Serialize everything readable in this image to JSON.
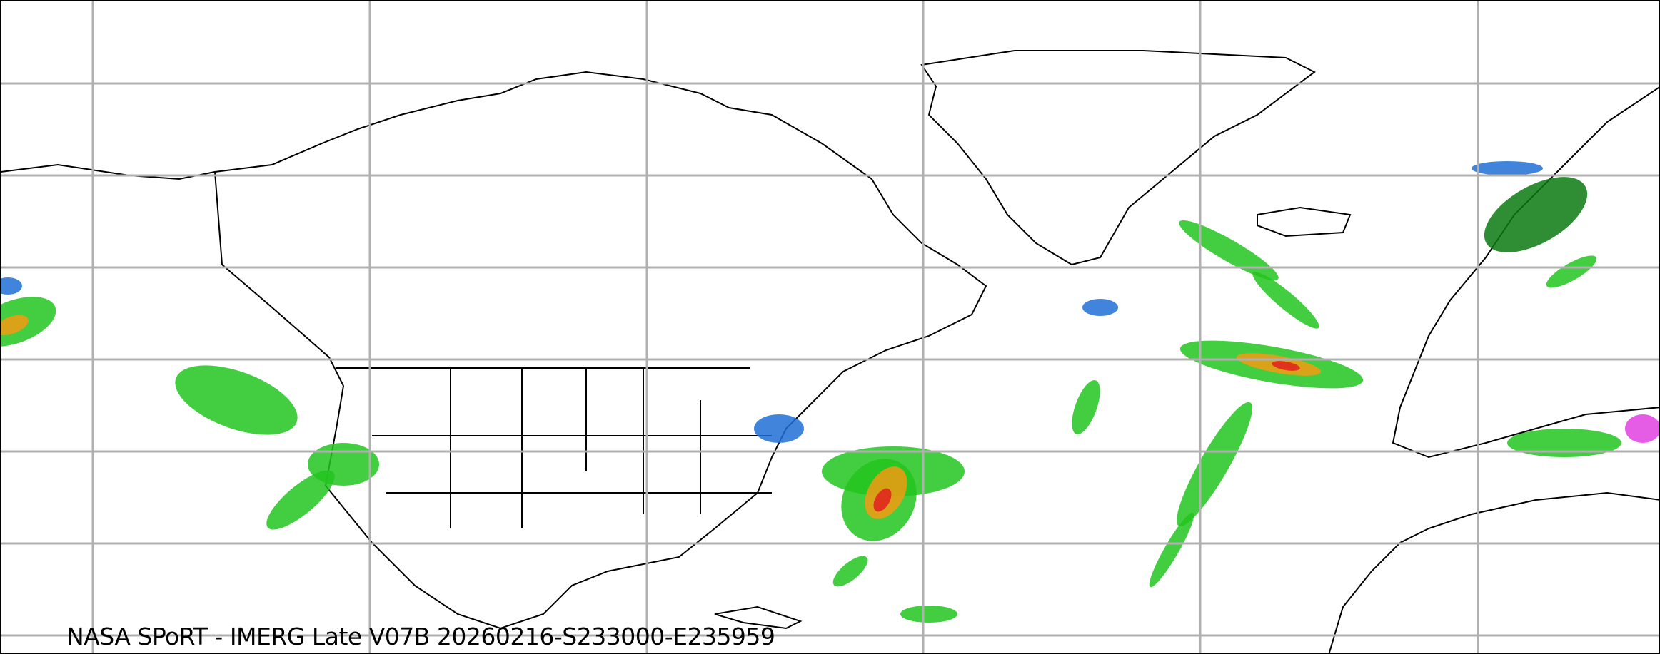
{
  "caption": "NASA SPoRT - IMERG Late V07B 20260216-S233000-E235959",
  "colors": {
    "gridline": "#b0b0b0",
    "coastline": "#000000",
    "precip_light": "#1f6fd6",
    "precip_green": "#22c41f",
    "precip_dark_green": "#0a7a10",
    "precip_yellow": "#f2f20a",
    "precip_orange": "#f59a12",
    "precip_red": "#e02020",
    "precip_magenta": "#e040e0"
  }
}
